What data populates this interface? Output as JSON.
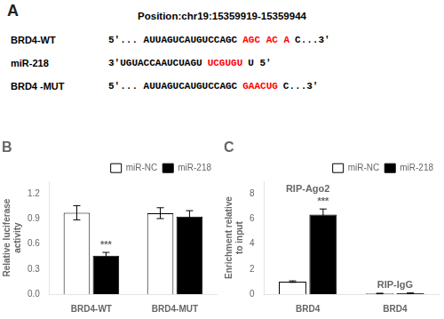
{
  "chart_data": [
    {
      "type": "text",
      "title": "A",
      "annotations": [
        [
          {
            "text": "Position:chr19:15359919-15359944"
          }
        ],
        [
          {
            "text": "BRD4-WT"
          },
          {
            "text": "5'... AUUAGUCAUGUCCAGC",
            "color": "black"
          },
          {
            "text": "AGC AC A",
            "color": "red"
          },
          {
            "text": "C...3'",
            "color": "black"
          }
        ],
        [
          {
            "text": "miR-218"
          },
          {
            "text": "3'UGUACCAAUCUAGU",
            "color": "black"
          },
          {
            "text": "UCGUGU",
            "color": "red"
          },
          {
            "text": "U 5'",
            "color": "black"
          }
        ],
        [
          {
            "text": "BRD4 -MUT"
          },
          {
            "text": "5'... AUUAGUCAUGUCCAGC",
            "color": "black"
          },
          {
            "text": "GAACUG",
            "color": "red"
          },
          {
            "text": "C...3'",
            "color": "black"
          }
        ]
      ]
    },
    {
      "type": "bar",
      "title": "B",
      "categories": [
        "BRD4-WT",
        "BRD4-MUT"
      ],
      "series": [
        {
          "name": "miR-NC",
          "color": "white",
          "values": [
            0.975,
            0.97
          ],
          "errors": [
            0.085,
            0.065
          ]
        },
        {
          "name": "miR-218",
          "color": "black",
          "values": [
            0.46,
            0.93
          ],
          "errors": [
            0.04,
            0.07
          ]
        }
      ],
      "ylabel": "Relative luciferase\nactivity",
      "ylim": [
        0.0,
        1.35
      ],
      "yticks": [
        {
          "value": 0.0,
          "label": "0.0"
        },
        0.3,
        0.6,
        0.9,
        1.2
      ],
      "annotations": [
        {
          "text": "***",
          "series": "miR-218",
          "category_index": 0
        }
      ],
      "legend": "upper right",
      "grid": false
    },
    {
      "type": "bar",
      "title": "C",
      "categories": [
        "BRD4",
        "BRD4"
      ],
      "series": [
        {
          "name": "miR-NC",
          "color": "white",
          "values": [
            1.0,
            0.05
          ],
          "errors": [
            0.06,
            0.02
          ]
        },
        {
          "name": "miR-218",
          "color": "black",
          "values": [
            6.35,
            0.07
          ],
          "errors": [
            0.45,
            0.02
          ]
        }
      ],
      "ylabel": "Enrichment relative\nto input",
      "ylim": [
        0.0,
        9.0
      ],
      "yticks": [
        0,
        2,
        4,
        6,
        8
      ],
      "annotations": [
        {
          "text": "***",
          "series": "miR-218",
          "category_index": 0
        },
        {
          "text": "RIP-Ago2",
          "category_index": 0
        },
        {
          "text": "RIP-IgG",
          "category_index": 1
        }
      ],
      "legend": "upper right",
      "grid": false
    }
  ]
}
